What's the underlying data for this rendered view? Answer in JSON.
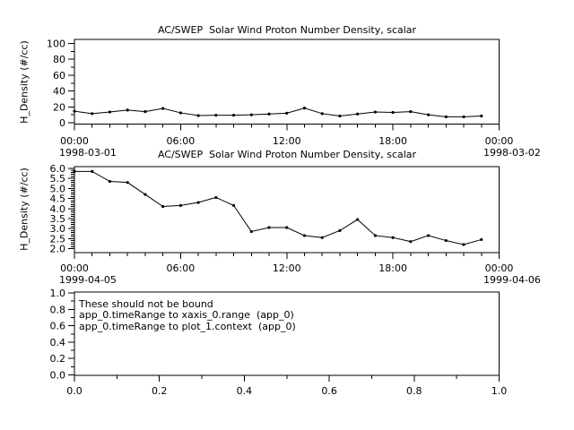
{
  "canvas": {
    "background": "#ffffff",
    "foreground": "#000000"
  },
  "chart_data": [
    {
      "type": "line",
      "title": "AC/SWEP  Solar Wind Proton Number Density, scalar",
      "ylabel": "H_Density (#/cc)",
      "xlabel": "",
      "x_date_left": "1998-03-01",
      "x_date_right": "1998-03-02",
      "x_unit": "hour of day",
      "xlim": [
        0,
        24
      ],
      "ylim": [
        0,
        100
      ],
      "grid": false,
      "legend": null,
      "x_ticks": {
        "values": [
          0,
          6,
          12,
          18,
          24
        ],
        "labels": [
          "00:00",
          "06:00",
          "12:00",
          "18:00",
          "00:00"
        ],
        "minor_step": 1
      },
      "y_ticks": {
        "values": [
          0,
          20,
          40,
          60,
          80,
          100
        ],
        "labels": [
          "0",
          "20",
          "40",
          "60",
          "80",
          "100"
        ],
        "minor_step": 10
      },
      "x": [
        0,
        1,
        2,
        3,
        4,
        5,
        6,
        7,
        8,
        9,
        10,
        11,
        12,
        13,
        14,
        15,
        16,
        17,
        18,
        19,
        20,
        21,
        22,
        23
      ],
      "values": [
        14.5,
        11.5,
        13.5,
        16,
        14,
        18,
        12.5,
        9,
        9.5,
        9.5,
        10,
        11,
        12,
        18.5,
        11.5,
        8.5,
        11,
        13.5,
        13,
        14,
        10,
        7.5,
        7.5,
        8.5
      ]
    },
    {
      "type": "line",
      "title": "AC/SWEP  Solar Wind Proton Number Density, scalar",
      "ylabel": "H_Density (#/cc)",
      "xlabel": "",
      "x_date_left": "1999-04-05",
      "x_date_right": "1999-04-06",
      "x_unit": "hour of day",
      "xlim": [
        0,
        24
      ],
      "ylim": [
        2.0,
        6.0
      ],
      "grid": false,
      "legend": null,
      "x_ticks": {
        "values": [
          0,
          6,
          12,
          18,
          24
        ],
        "labels": [
          "00:00",
          "06:00",
          "12:00",
          "18:00",
          "00:00"
        ],
        "minor_step": 1
      },
      "y_ticks": {
        "values": [
          2.0,
          2.5,
          3.0,
          3.5,
          4.0,
          4.5,
          5.0,
          5.5,
          6.0
        ],
        "labels": [
          "2.0",
          "2.5",
          "3.0",
          "3.5",
          "4.0",
          "4.5",
          "5.0",
          "5.5",
          "6.0"
        ],
        "minor_step": 0.1
      },
      "x": [
        0,
        1,
        2,
        3,
        4,
        5,
        6,
        7,
        8,
        9,
        10,
        11,
        12,
        13,
        14,
        15,
        16,
        17,
        18,
        19,
        20,
        21,
        22,
        23
      ],
      "values": [
        5.85,
        5.85,
        5.35,
        5.3,
        4.7,
        4.1,
        4.15,
        4.3,
        4.55,
        4.15,
        2.85,
        3.05,
        3.05,
        2.65,
        2.55,
        2.9,
        3.45,
        2.65,
        2.55,
        2.35,
        2.65,
        2.4,
        2.2,
        2.45
      ]
    },
    {
      "type": "empty",
      "title": "",
      "ylabel": "",
      "xlabel": "",
      "xlim": [
        0.0,
        1.0
      ],
      "ylim": [
        0.0,
        1.0
      ],
      "grid": false,
      "legend": null,
      "x_ticks": {
        "values": [
          0.0,
          0.2,
          0.4,
          0.6,
          0.8,
          1.0
        ],
        "labels": [
          "0.0",
          "0.2",
          "0.4",
          "0.6",
          "0.8",
          "1.0"
        ],
        "minor_step": 0.1
      },
      "y_ticks": {
        "values": [
          0.0,
          0.2,
          0.4,
          0.6,
          0.8,
          1.0
        ],
        "labels": [
          "0.0",
          "0.2",
          "0.4",
          "0.6",
          "0.8",
          "1.0"
        ],
        "minor_step": 0.1
      },
      "annotations": [
        "These should not be bound",
        "app_0.timeRange to xaxis_0.range  (app_0)",
        "app_0.timeRange to plot_1.context  (app_0)"
      ]
    }
  ]
}
